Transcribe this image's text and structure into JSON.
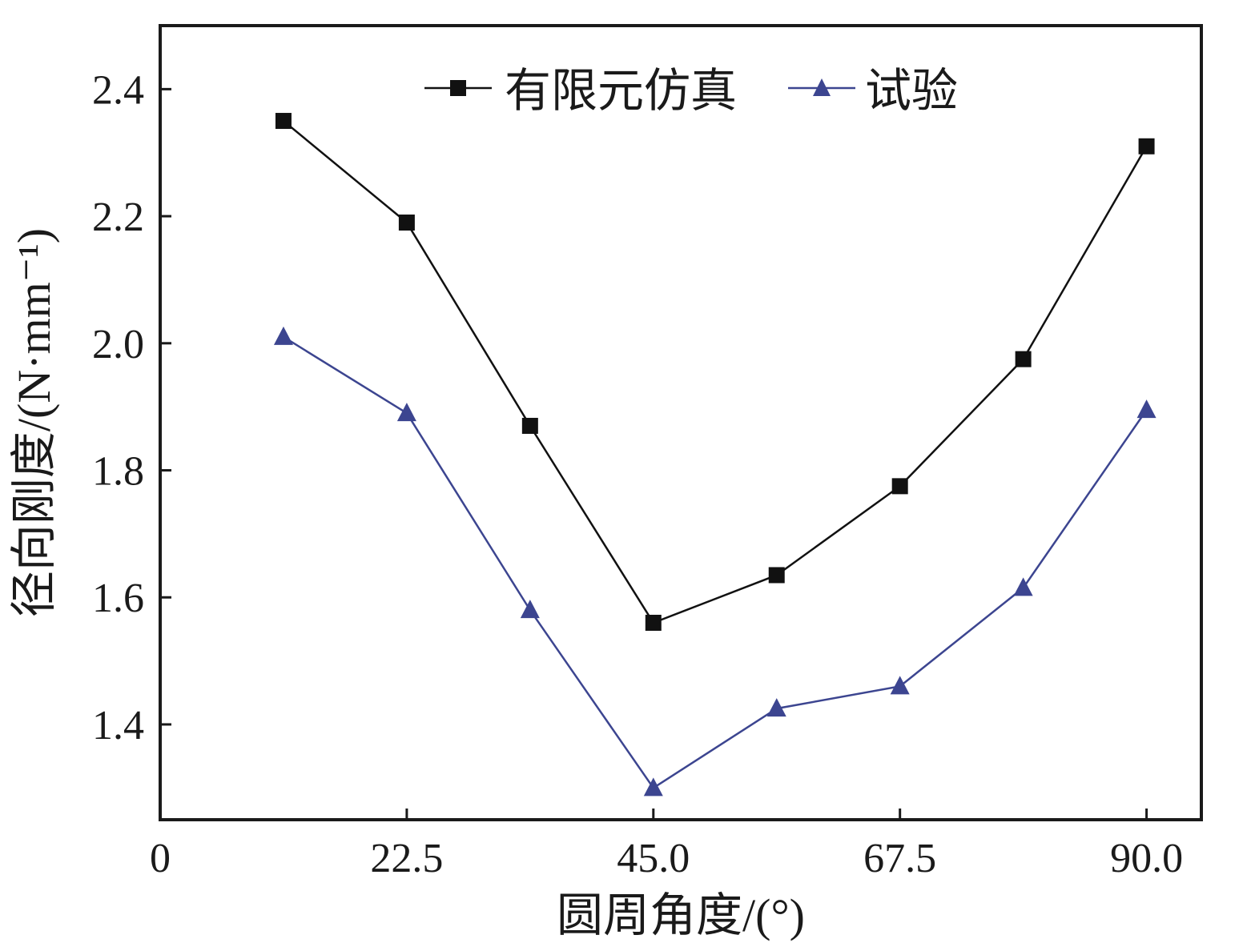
{
  "chart_data": {
    "type": "line",
    "title": "",
    "xlabel": "圆周角度/(°)",
    "ylabel": "径向刚度/(N·mm⁻¹)",
    "xlim": [
      0,
      95
    ],
    "ylim": [
      1.25,
      2.5
    ],
    "x_ticks": [
      0,
      22.5,
      45.0,
      67.5,
      90.0
    ],
    "x_tick_labels": [
      "0",
      "22.5",
      "45.0",
      "67.5",
      "90.0"
    ],
    "y_ticks": [
      1.4,
      1.6,
      1.8,
      2.0,
      2.2,
      2.4
    ],
    "y_tick_labels": [
      "1.4",
      "1.6",
      "1.8",
      "2.0",
      "2.2",
      "2.4"
    ],
    "grid": false,
    "legend_position": "top-center",
    "series": [
      {
        "name": "有限元仿真",
        "marker": "square",
        "color": "#111111",
        "x": [
          11.25,
          22.5,
          33.75,
          45.0,
          56.25,
          67.5,
          78.75,
          90.0
        ],
        "y": [
          2.35,
          2.19,
          1.87,
          1.56,
          1.635,
          1.775,
          1.975,
          2.31
        ]
      },
      {
        "name": "试验",
        "marker": "triangle",
        "color": "#3c4590",
        "x": [
          11.25,
          22.5,
          33.75,
          45.0,
          56.25,
          67.5,
          78.75,
          90.0
        ],
        "y": [
          2.01,
          1.89,
          1.58,
          1.3,
          1.425,
          1.46,
          1.615,
          1.895
        ]
      }
    ]
  }
}
